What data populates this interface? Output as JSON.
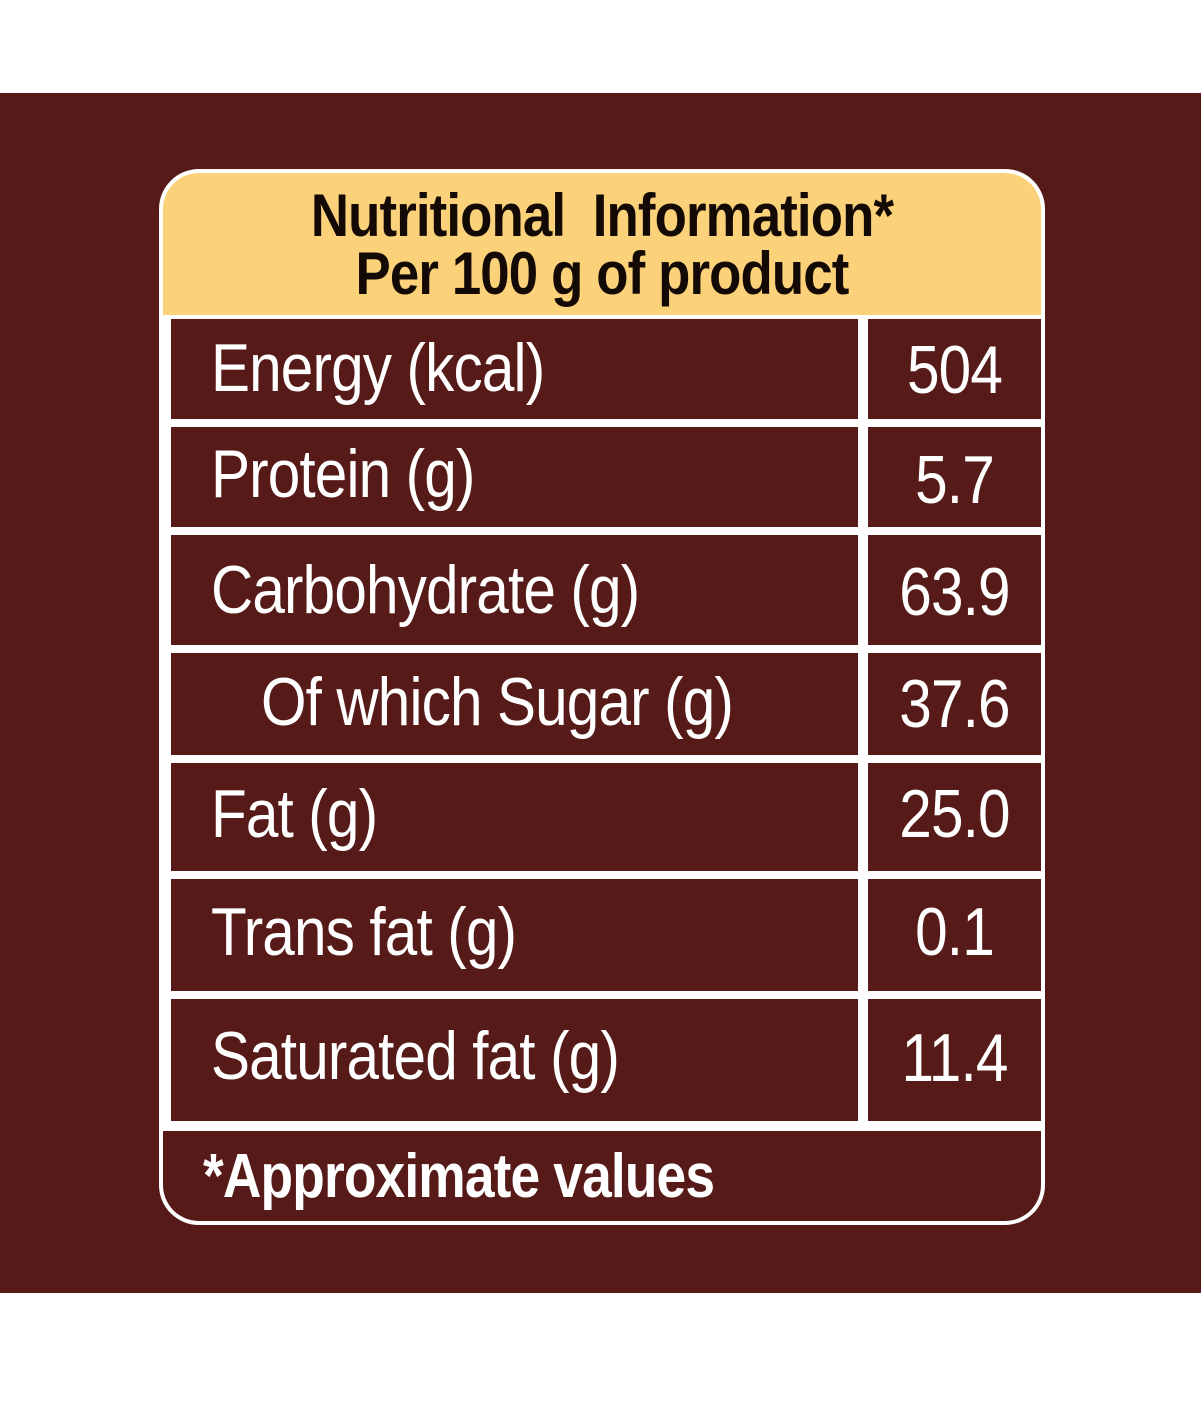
{
  "header": {
    "title": "Nutritional  Information*",
    "subtitle": "Per 100 g of product"
  },
  "rows": [
    {
      "label": "Energy (kcal)",
      "value": "504"
    },
    {
      "label": "Protein (g)",
      "value": "5.7"
    },
    {
      "label": "Carbohydrate (g)",
      "value": "63.9"
    },
    {
      "label": "Of which Sugar (g)",
      "value": "37.6"
    },
    {
      "label": "Fat (g)",
      "value": "25.0"
    },
    {
      "label": "Trans fat (g)",
      "value": "0.1"
    },
    {
      "label": "Saturated fat (g)",
      "value": "11.4"
    }
  ],
  "footer": {
    "note": "*Approximate values"
  },
  "colors": {
    "background": "#561a18",
    "header": "#fbd27a",
    "text": "#ffffff"
  }
}
